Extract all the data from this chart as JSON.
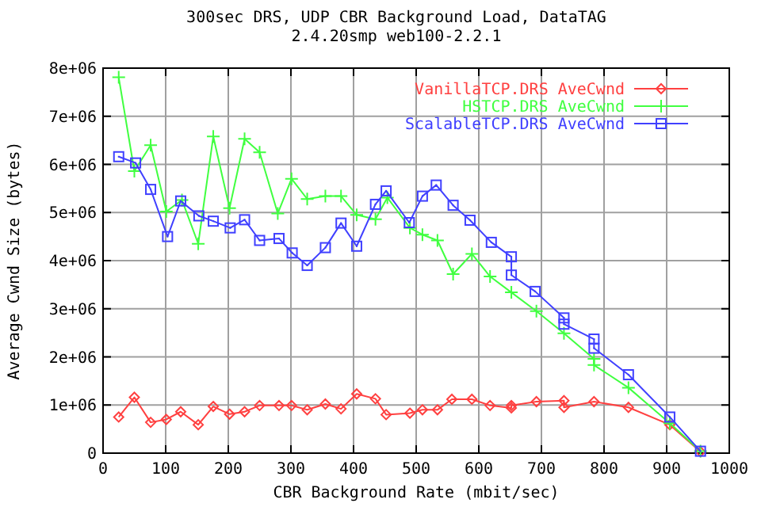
{
  "chart_data": {
    "type": "line",
    "title": "300sec DRS, UDP CBR Background Load, DataTAG",
    "subtitle": "2.4.20smp web100-2.2.1",
    "xlabel": "CBR Background Rate (mbit/sec)",
    "ylabel": "Average Cwnd Size (bytes)",
    "xlim": [
      0,
      1000
    ],
    "xticks": [
      0,
      100,
      200,
      300,
      400,
      500,
      600,
      700,
      800,
      900,
      1000
    ],
    "ylim": [
      0,
      8000000
    ],
    "yticks": [
      0,
      {
        "value": 1000000,
        "label": "1e+06"
      },
      {
        "value": 2000000,
        "label": "2e+06"
      },
      {
        "value": 3000000,
        "label": "3e+06"
      },
      {
        "value": 4000000,
        "label": "4e+06"
      },
      {
        "value": 5000000,
        "label": "5e+06"
      },
      {
        "value": 6000000,
        "label": "6e+06"
      },
      {
        "value": 7000000,
        "label": "7e+06"
      },
      {
        "value": 8000000,
        "label": "8e+06"
      }
    ],
    "grid": true,
    "legend": "top right",
    "line_style": "solid",
    "series": [
      {
        "name": "VanillaTCP.DRS AveCwnd",
        "color": "#ff4040",
        "marker": "diamond",
        "x": [
          25,
          50,
          76,
          101,
          124,
          152,
          176,
          202,
          226,
          250,
          281,
          301,
          326,
          355,
          380,
          405,
          435,
          452,
          490,
          510,
          534,
          557,
          589,
          618,
          652,
          652,
          692,
          736,
          736,
          784,
          839,
          905,
          954
        ],
        "values": [
          750000,
          1160000,
          640000,
          700000,
          860000,
          590000,
          970000,
          810000,
          860000,
          990000,
          990000,
          990000,
          900000,
          1020000,
          920000,
          1230000,
          1130000,
          800000,
          830000,
          900000,
          900000,
          1120000,
          1120000,
          990000,
          940000,
          990000,
          1070000,
          1090000,
          950000,
          1070000,
          950000,
          590000,
          30000
        ]
      },
      {
        "name": "HSTCP.DRS AveCwnd",
        "color": "#40ff40",
        "marker": "cross",
        "x": [
          25,
          50,
          76,
          101,
          126,
          152,
          176,
          202,
          226,
          250,
          279,
          301,
          326,
          355,
          380,
          405,
          435,
          454,
          490,
          510,
          534,
          559,
          589,
          618,
          652,
          692,
          736,
          784,
          784,
          839,
          905,
          954
        ],
        "values": [
          7810000,
          5860000,
          6400000,
          5020000,
          5260000,
          4350000,
          6580000,
          5090000,
          6530000,
          6250000,
          4980000,
          5700000,
          5280000,
          5340000,
          5340000,
          4950000,
          4860000,
          5310000,
          4680000,
          4540000,
          4420000,
          3720000,
          4140000,
          3670000,
          3340000,
          2950000,
          2490000,
          1960000,
          1830000,
          1360000,
          620000,
          40000
        ]
      },
      {
        "name": "ScalableTCP.DRS AveCwnd",
        "color": "#4040ff",
        "marker": "square",
        "x": [
          25,
          52,
          76,
          103,
          124,
          153,
          176,
          203,
          226,
          250,
          281,
          302,
          326,
          355,
          380,
          405,
          435,
          452,
          489,
          510,
          532,
          559,
          586,
          620,
          652,
          652,
          690,
          736,
          736,
          784,
          784,
          839,
          905,
          954
        ],
        "values": [
          6160000,
          6030000,
          5480000,
          4500000,
          5240000,
          4930000,
          4820000,
          4680000,
          4850000,
          4420000,
          4460000,
          4160000,
          3900000,
          4270000,
          4780000,
          4300000,
          5170000,
          5450000,
          4790000,
          5340000,
          5570000,
          5150000,
          4840000,
          4380000,
          4080000,
          3700000,
          3360000,
          2810000,
          2680000,
          2370000,
          2180000,
          1630000,
          750000,
          40000
        ]
      }
    ]
  }
}
